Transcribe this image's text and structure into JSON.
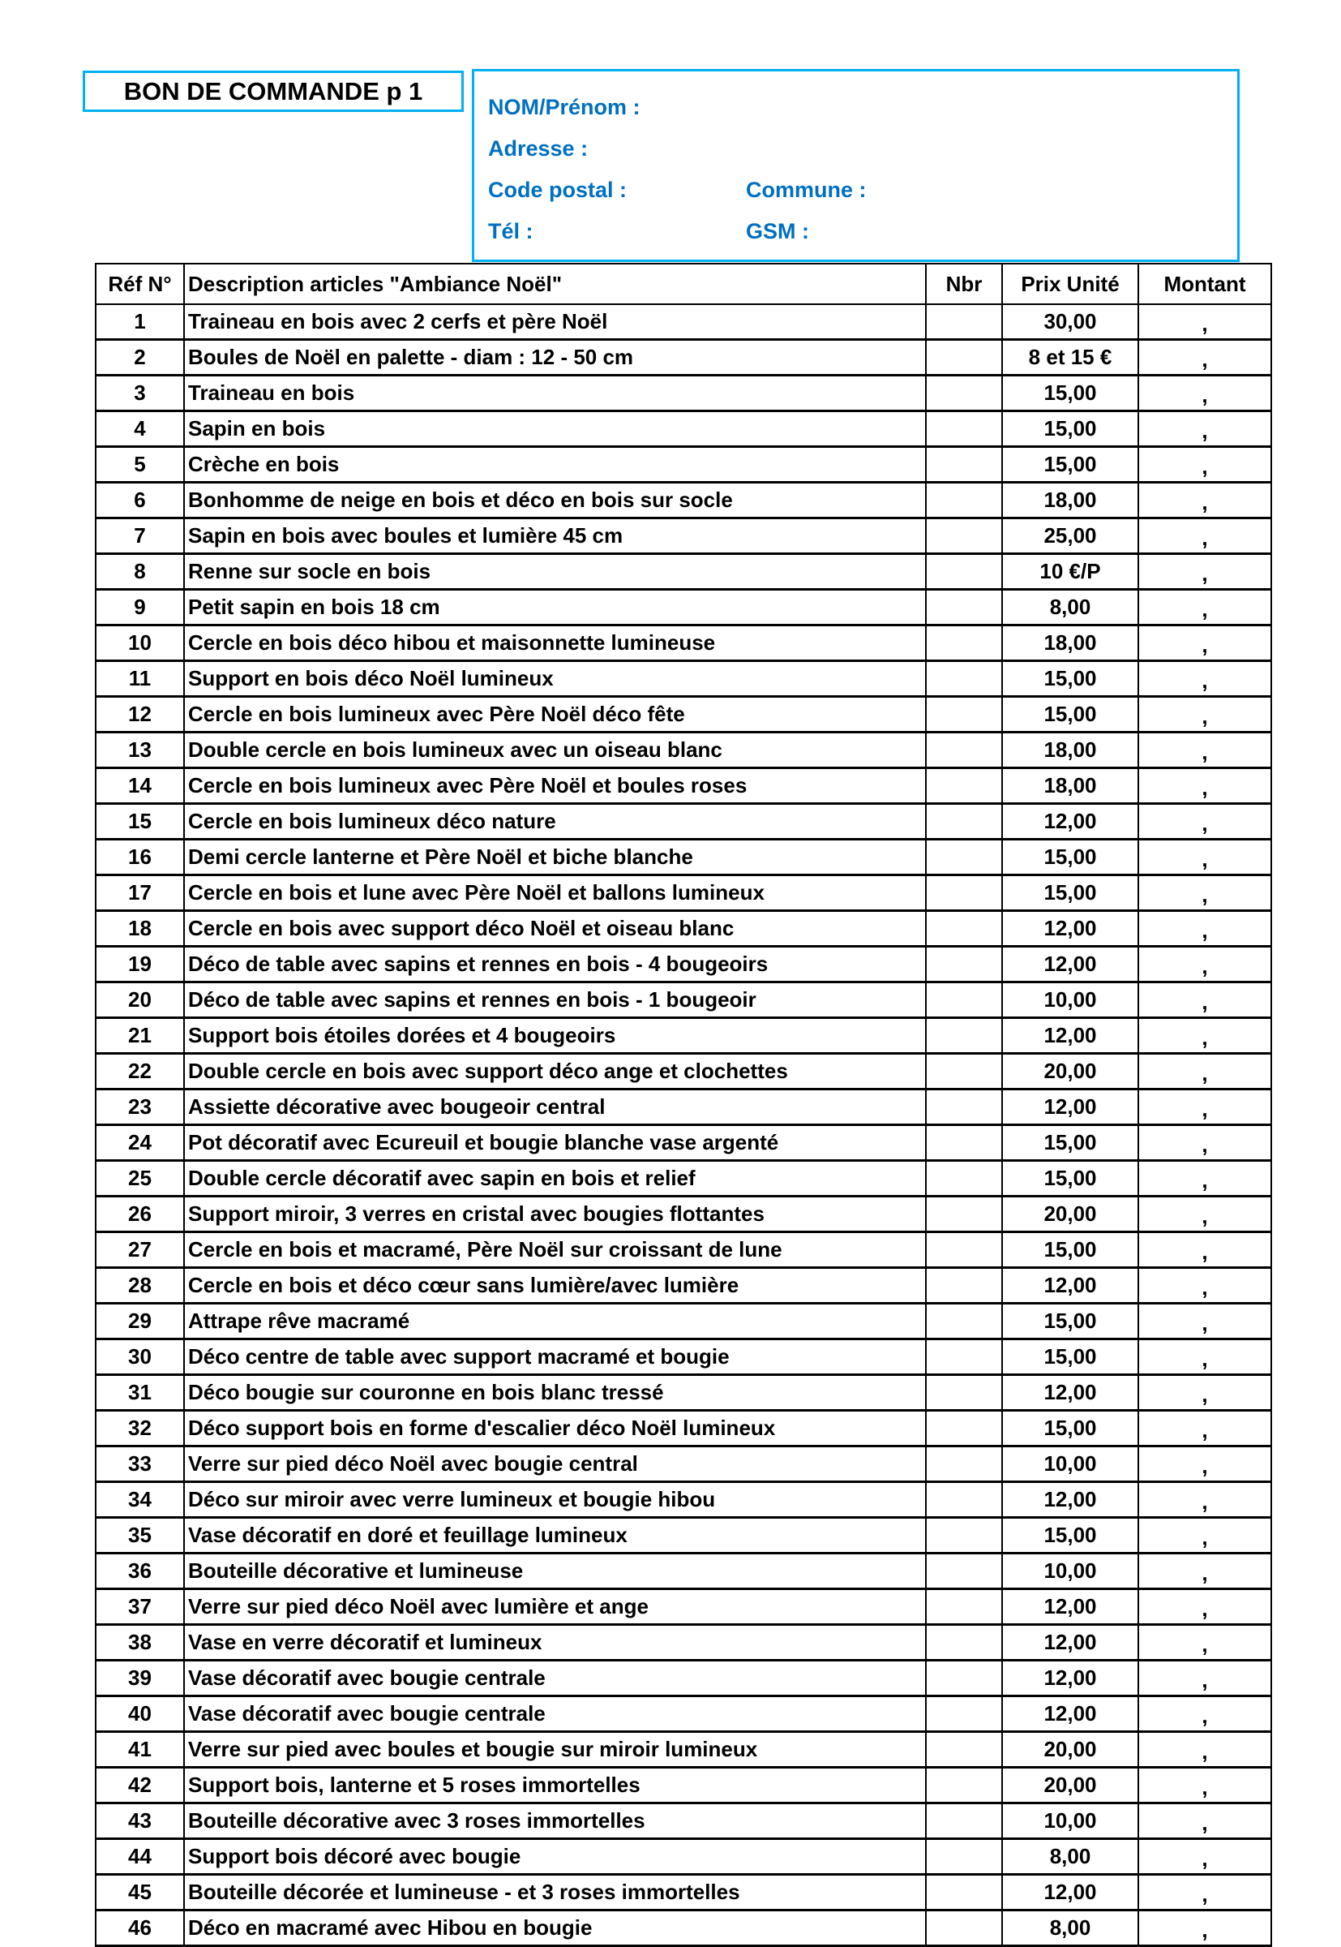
{
  "title": "BON DE COMMANDE p 1",
  "customer_info": {
    "name_label": "NOM/Prénom :",
    "address_label": "Adresse :",
    "postal_label": "Code postal :",
    "commune_label": "Commune :",
    "tel_label": "Tél :",
    "gsm_label": "GSM :"
  },
  "colors": {
    "border_accent": "#00b0f0",
    "label_text": "#0070c0"
  },
  "table": {
    "headers": [
      "Réf N°",
      "Description articles \"Ambiance Noël\"",
      "Nbr",
      "Prix Unité",
      "Montant"
    ],
    "rows": [
      {
        "ref": "1",
        "desc": "Traineau en bois avec 2 cerfs et père Noël",
        "nbr": "",
        "price": "30,00",
        "amount": ","
      },
      {
        "ref": "2",
        "desc": "Boules de Noël en palette - diam : 12 - 50 cm",
        "nbr": "",
        "price": "8 et 15 €",
        "amount": ","
      },
      {
        "ref": "3",
        "desc": "Traineau en bois",
        "nbr": "",
        "price": "15,00",
        "amount": ","
      },
      {
        "ref": "4",
        "desc": "Sapin en bois",
        "nbr": "",
        "price": "15,00",
        "amount": ","
      },
      {
        "ref": "5",
        "desc": "Crèche en bois",
        "nbr": "",
        "price": "15,00",
        "amount": ","
      },
      {
        "ref": "6",
        "desc": "Bonhomme de neige en bois et déco en bois sur socle",
        "nbr": "",
        "price": "18,00",
        "amount": ","
      },
      {
        "ref": "7",
        "desc": "Sapin en bois avec boules et lumière 45 cm",
        "nbr": "",
        "price": "25,00",
        "amount": ","
      },
      {
        "ref": "8",
        "desc": "Renne sur socle en bois",
        "nbr": "",
        "price": "10 €/P",
        "amount": ","
      },
      {
        "ref": "9",
        "desc": "Petit sapin en bois 18 cm",
        "nbr": "",
        "price": "8,00",
        "amount": ","
      },
      {
        "ref": "10",
        "desc": "Cercle en bois déco hibou et maisonnette lumineuse",
        "nbr": "",
        "price": "18,00",
        "amount": ","
      },
      {
        "ref": "11",
        "desc": "Support en bois déco Noël lumineux",
        "nbr": "",
        "price": "15,00",
        "amount": ","
      },
      {
        "ref": "12",
        "desc": "Cercle en bois lumineux avec Père Noël déco fête",
        "nbr": "",
        "price": "15,00",
        "amount": ","
      },
      {
        "ref": "13",
        "desc": "Double cercle en bois lumineux avec un oiseau blanc",
        "nbr": "",
        "price": "18,00",
        "amount": ","
      },
      {
        "ref": "14",
        "desc": "Cercle en bois lumineux avec Père Noël et boules roses",
        "nbr": "",
        "price": "18,00",
        "amount": ","
      },
      {
        "ref": "15",
        "desc": "Cercle en bois lumineux déco nature",
        "nbr": "",
        "price": "12,00",
        "amount": ","
      },
      {
        "ref": "16",
        "desc": "Demi cercle lanterne et Père Noël et biche blanche",
        "nbr": "",
        "price": "15,00",
        "amount": ","
      },
      {
        "ref": "17",
        "desc": "Cercle en bois et lune avec Père Noël et ballons lumineux",
        "nbr": "",
        "price": "15,00",
        "amount": ","
      },
      {
        "ref": "18",
        "desc": "Cercle en bois avec support déco Noël et oiseau blanc",
        "nbr": "",
        "price": "12,00",
        "amount": ","
      },
      {
        "ref": "19",
        "desc": "Déco de table avec sapins et rennes en bois - 4 bougeoirs",
        "nbr": "",
        "price": "12,00",
        "amount": ","
      },
      {
        "ref": "20",
        "desc": "Déco de table avec sapins et rennes en bois - 1 bougeoir",
        "nbr": "",
        "price": "10,00",
        "amount": ","
      },
      {
        "ref": "21",
        "desc": "Support bois étoiles dorées et 4 bougeoirs",
        "nbr": "",
        "price": "12,00",
        "amount": ","
      },
      {
        "ref": "22",
        "desc": "Double cercle en bois avec support déco ange et clochettes",
        "nbr": "",
        "price": "20,00",
        "amount": ","
      },
      {
        "ref": "23",
        "desc": "Assiette décorative avec bougeoir central",
        "nbr": "",
        "price": "12,00",
        "amount": ","
      },
      {
        "ref": "24",
        "desc": "Pot décoratif avec Ecureuil et bougie blanche vase argenté",
        "nbr": "",
        "price": "15,00",
        "amount": ","
      },
      {
        "ref": "25",
        "desc": "Double cercle décoratif avec sapin en bois et relief",
        "nbr": "",
        "price": "15,00",
        "amount": ","
      },
      {
        "ref": "26",
        "desc": "Support miroir, 3 verres en cristal avec bougies flottantes",
        "nbr": "",
        "price": "20,00",
        "amount": ","
      },
      {
        "ref": "27",
        "desc": "Cercle en bois et macramé, Père Noël sur croissant de lune",
        "nbr": "",
        "price": "15,00",
        "amount": ","
      },
      {
        "ref": "28",
        "desc": "Cercle en bois et déco cœur sans lumière/avec lumière",
        "nbr": "",
        "price": "12,00",
        "amount": ","
      },
      {
        "ref": "29",
        "desc": "Attrape rêve macramé",
        "nbr": "",
        "price": "15,00",
        "amount": ","
      },
      {
        "ref": "30",
        "desc": "Déco centre de table avec support macramé et bougie",
        "nbr": "",
        "price": "15,00",
        "amount": ","
      },
      {
        "ref": "31",
        "desc": "Déco bougie sur couronne en bois blanc tressé",
        "nbr": "",
        "price": "12,00",
        "amount": ","
      },
      {
        "ref": "32",
        "desc": "Déco support bois en forme d'escalier déco Noël lumineux",
        "nbr": "",
        "price": "15,00",
        "amount": ","
      },
      {
        "ref": "33",
        "desc": "Verre sur pied déco Noël avec bougie central",
        "nbr": "",
        "price": "10,00",
        "amount": ","
      },
      {
        "ref": "34",
        "desc": "Déco sur miroir avec verre lumineux et bougie hibou",
        "nbr": "",
        "price": "12,00",
        "amount": ","
      },
      {
        "ref": "35",
        "desc": "Vase décoratif en doré et feuillage lumineux",
        "nbr": "",
        "price": "15,00",
        "amount": ","
      },
      {
        "ref": "36",
        "desc": "Bouteille décorative et lumineuse",
        "nbr": "",
        "price": "10,00",
        "amount": ","
      },
      {
        "ref": "37",
        "desc": "Verre sur pied déco Noël avec lumière et ange",
        "nbr": "",
        "price": "12,00",
        "amount": ","
      },
      {
        "ref": "38",
        "desc": "Vase en verre décoratif et lumineux",
        "nbr": "",
        "price": "12,00",
        "amount": ","
      },
      {
        "ref": "39",
        "desc": "Vase décoratif  avec bougie centrale",
        "nbr": "",
        "price": "12,00",
        "amount": ","
      },
      {
        "ref": "40",
        "desc": "Vase décoratif avec bougie centrale",
        "nbr": "",
        "price": "12,00",
        "amount": ","
      },
      {
        "ref": "41",
        "desc": "Verre sur pied avec boules et bougie sur miroir lumineux",
        "nbr": "",
        "price": "20,00",
        "amount": ","
      },
      {
        "ref": "42",
        "desc": "Support bois, lanterne et 5 roses immortelles",
        "nbr": "",
        "price": "20,00",
        "amount": ","
      },
      {
        "ref": "43",
        "desc": "Bouteille décorative avec 3 roses immortelles",
        "nbr": "",
        "price": "10,00",
        "amount": ","
      },
      {
        "ref": "44",
        "desc": "Support bois décoré avec bougie",
        "nbr": "",
        "price": "8,00",
        "amount": ","
      },
      {
        "ref": "45",
        "desc": "Bouteille décorée et lumineuse - et 3 roses immortelles",
        "nbr": "",
        "price": "12,00",
        "amount": ","
      },
      {
        "ref": "46",
        "desc": "Déco en macramé avec Hibou en bougie",
        "nbr": "",
        "price": "8,00",
        "amount": ","
      }
    ]
  }
}
